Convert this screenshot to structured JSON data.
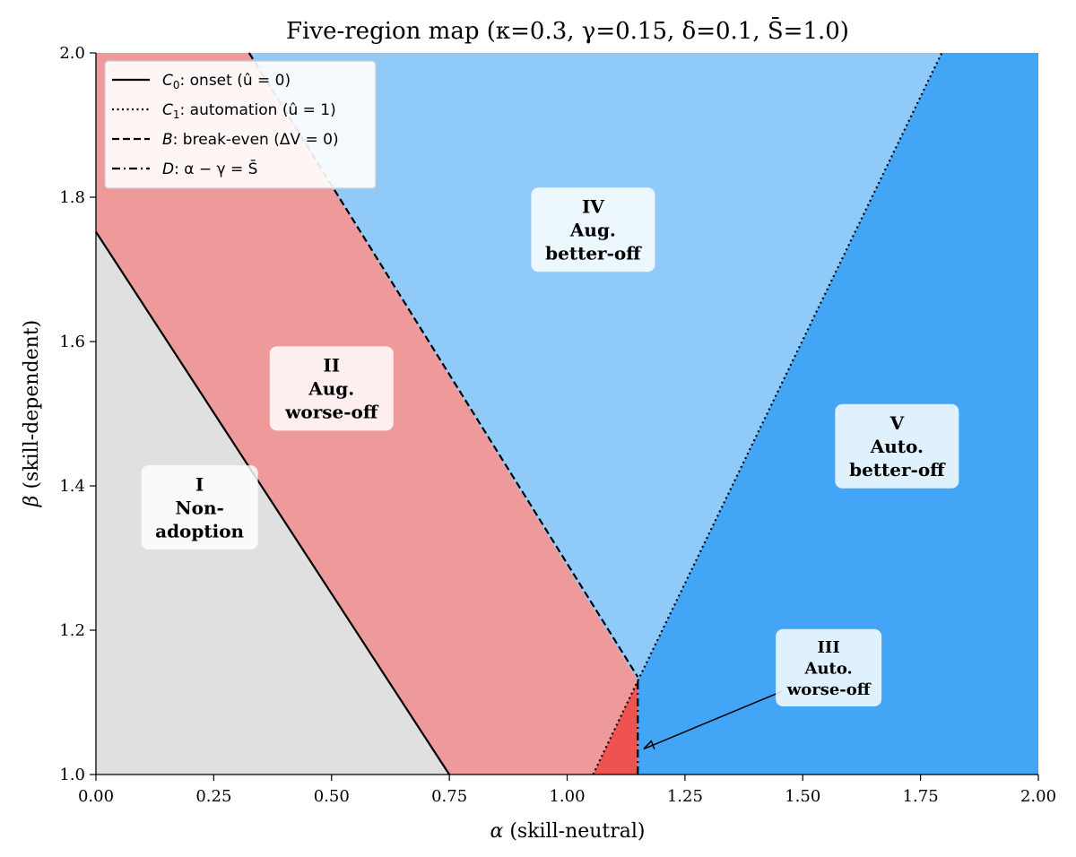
{
  "chart_data": {
    "type": "area",
    "title": "Five-region map (κ=0.3, γ=0.15, δ=0.1, S̄=1.0)",
    "xlabel_symbol": "α",
    "xlabel_text": " (skill-neutral)",
    "ylabel_symbol": "β",
    "ylabel_text": " (skill-dependent)",
    "xlim": [
      0.0,
      2.0
    ],
    "ylim": [
      1.0,
      2.0
    ],
    "xticks": [
      "0.00",
      "0.25",
      "0.50",
      "0.75",
      "1.00",
      "1.25",
      "1.50",
      "1.75",
      "2.00"
    ],
    "xtick_values": [
      0,
      0.25,
      0.5,
      0.75,
      1.0,
      1.25,
      1.5,
      1.75,
      2.0
    ],
    "yticks": [
      "1.0",
      "1.2",
      "1.4",
      "1.6",
      "1.8",
      "2.0"
    ],
    "ytick_values": [
      1.0,
      1.2,
      1.4,
      1.6,
      1.8,
      2.0
    ],
    "grid": false,
    "legend_position": "top-left",
    "curves": {
      "C0": {
        "points": [
          [
            0.0,
            1.752
          ],
          [
            0.75,
            1.0
          ]
        ]
      },
      "C1": {
        "points": [
          [
            1.15,
            1.13
          ],
          [
            1.795,
            2.0
          ]
        ]
      },
      "C1_lower": {
        "points": [
          [
            1.055,
            1.0
          ],
          [
            1.15,
            1.13
          ]
        ]
      },
      "B": {
        "points": [
          [
            0.325,
            2.0
          ],
          [
            1.15,
            1.135
          ]
        ]
      },
      "D": {
        "points": [
          [
            1.15,
            1.0
          ],
          [
            1.15,
            1.13
          ]
        ]
      }
    },
    "legend": [
      {
        "key": "C0",
        "style": "solid",
        "label_main": "C",
        "label_sub": "0",
        "label_rest": ": onset (û = 0)"
      },
      {
        "key": "C1",
        "style": "dotted",
        "label_main": "C",
        "label_sub": "1",
        "label_rest": ": automation (û = 1)"
      },
      {
        "key": "B",
        "style": "dashed",
        "label_main": "B",
        "label_sub": "",
        "label_rest": ": break-even (ΔV = 0)"
      },
      {
        "key": "D",
        "style": "dashdot",
        "label_main": "D",
        "label_sub": "",
        "label_rest": ": α − γ = S̄"
      }
    ],
    "regions": [
      {
        "id": "I",
        "color": "#e0e0e0",
        "label": [
          "I",
          "Non-",
          "adoption"
        ],
        "anchor": [
          0.22,
          1.37
        ],
        "font": 20
      },
      {
        "id": "II",
        "color": "#ef9a9a",
        "label": [
          "II",
          "Aug.",
          "worse-off"
        ],
        "anchor": [
          0.5,
          1.535
        ],
        "font": 20
      },
      {
        "id": "III",
        "color": "#ef5350",
        "label": [
          "III",
          "Auto.",
          "worse-off"
        ],
        "anchor": [
          1.555,
          1.148
        ],
        "font": 18
      },
      {
        "id": "IV",
        "color": "#90caf9",
        "label": [
          "IV",
          "Aug.",
          "better-off"
        ],
        "anchor": [
          1.055,
          1.755
        ],
        "font": 20
      },
      {
        "id": "V",
        "color": "#42a5f5",
        "label": [
          "V",
          "Auto.",
          "better-off"
        ],
        "anchor": [
          1.7,
          1.455
        ],
        "font": 20
      }
    ],
    "annotation": {
      "target": [
        1.155,
        1.033
      ],
      "text_anchor": [
        1.455,
        1.115
      ]
    }
  }
}
